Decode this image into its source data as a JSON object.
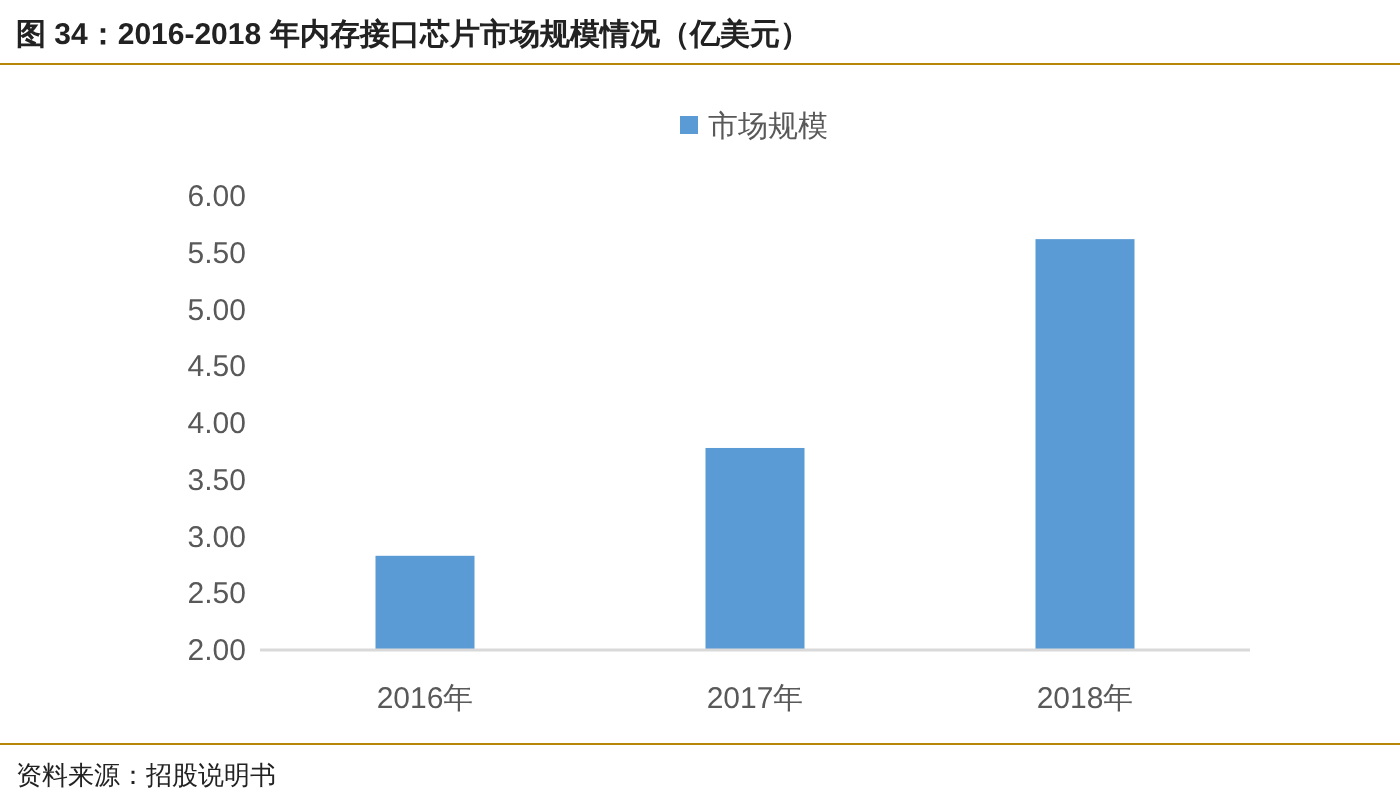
{
  "chart_data": {
    "type": "bar",
    "title": "图 34：2016-2018 年内存接口芯片市场规模情况（亿美元）",
    "categories": [
      "2016年",
      "2017年",
      "2018年"
    ],
    "series": [
      {
        "name": "市场规模",
        "color": "#5b9bd5",
        "values": [
          2.83,
          3.78,
          5.62
        ]
      }
    ],
    "ylim": [
      2,
      6
    ],
    "yticks": [
      {
        "value": 2,
        "label": "2.00"
      },
      {
        "value": 2.5,
        "label": "2.50"
      },
      {
        "value": 3,
        "label": "3.00"
      },
      {
        "value": 3.5,
        "label": "3.50"
      },
      {
        "value": 4,
        "label": "4.00"
      },
      {
        "value": 4.5,
        "label": "4.50"
      },
      {
        "value": 5,
        "label": "5.00"
      },
      {
        "value": 5.5,
        "label": "5.50"
      },
      {
        "value": 6,
        "label": "6.00"
      }
    ],
    "legend": "top",
    "grid": false,
    "annotations": [
      "资料来源：招股说明书"
    ]
  }
}
